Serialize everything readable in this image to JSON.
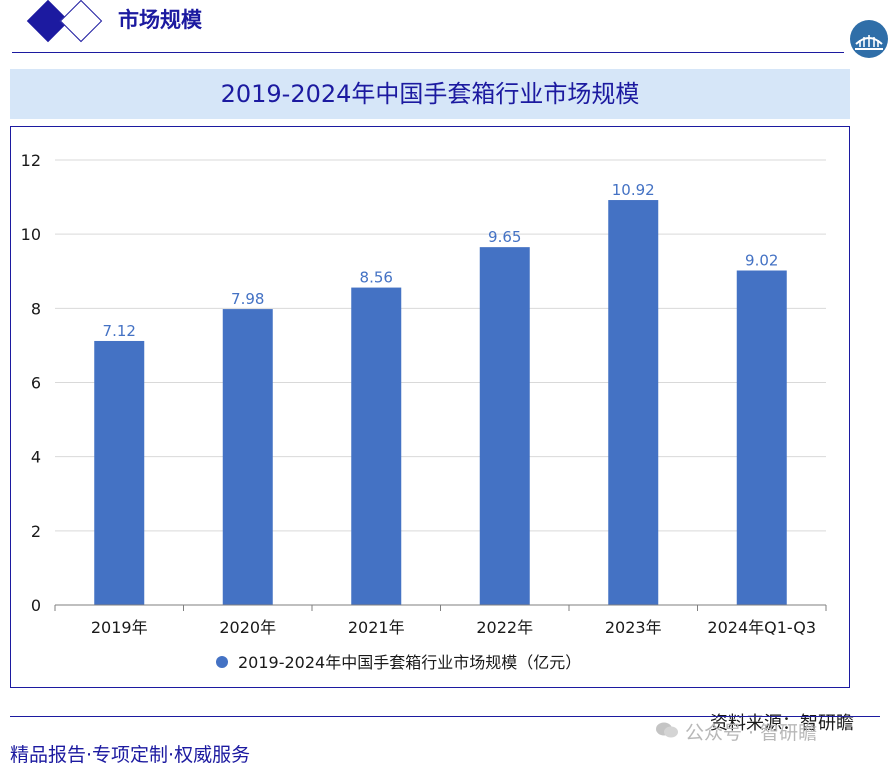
{
  "header": {
    "title": "市场规模"
  },
  "chart_data": {
    "type": "bar",
    "title": "2019-2024年中国手套箱行业市场规模",
    "categories": [
      "2019年",
      "2020年",
      "2021年",
      "2022年",
      "2023年",
      "2024年Q1-Q3"
    ],
    "series": [
      {
        "name": "2019-2024年中国手套箱行业市场规模（亿元）",
        "values": [
          7.12,
          7.98,
          8.56,
          9.65,
          10.92,
          9.02
        ]
      }
    ],
    "data_labels": [
      "7.12",
      "7.98",
      "8.56",
      "9.65",
      "10.92",
      "9.02"
    ],
    "yticks": [
      "0",
      "2",
      "4",
      "6",
      "8",
      "10",
      "12"
    ],
    "ylim": [
      0,
      12
    ],
    "grid": true,
    "legend_position": "bottom",
    "bar_color": "#4472c4",
    "label_color": "#4472c4"
  },
  "footer": {
    "source": "资料来源：智研瞻",
    "slogan": "精品报告·专项定制·权威服务",
    "watermark": "公众号 · 智研瞻"
  }
}
